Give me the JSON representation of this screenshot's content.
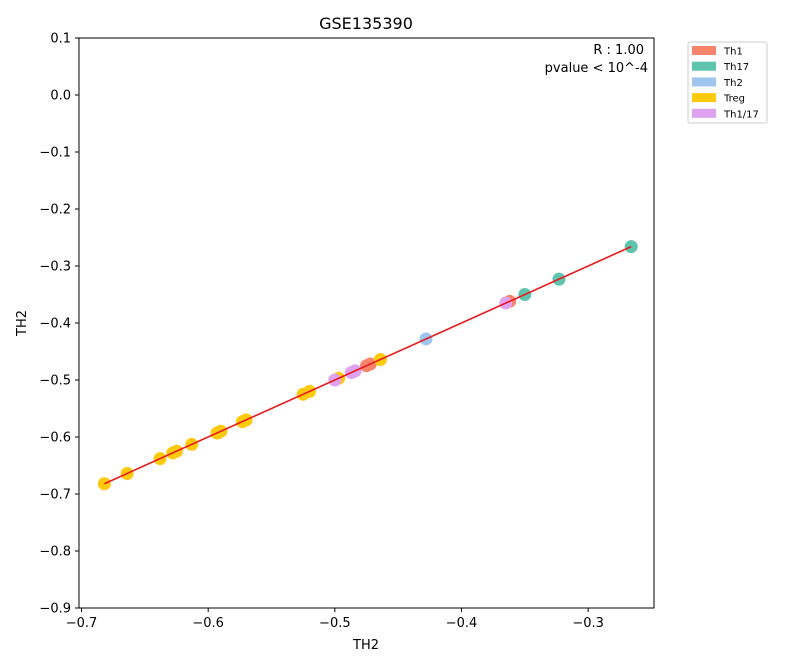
{
  "chart_data": {
    "type": "scatter",
    "title": "GSE135390",
    "xlabel": "TH2",
    "ylabel": "TH2",
    "xlim": [
      -0.702,
      -0.248
    ],
    "ylim": [
      -0.9,
      0.1
    ],
    "xticks": [
      -0.7,
      -0.6,
      -0.5,
      -0.4,
      -0.3
    ],
    "xtick_labels": [
      "−0.7",
      "−0.6",
      "−0.5",
      "−0.4",
      "−0.3"
    ],
    "yticks": [
      0.1,
      0.0,
      -0.1,
      -0.2,
      -0.3,
      -0.4,
      -0.5,
      -0.6,
      -0.7,
      -0.8,
      -0.9
    ],
    "ytick_labels": [
      "0.1",
      "0.0",
      "−0.1",
      "−0.2",
      "−0.3",
      "−0.4",
      "−0.5",
      "−0.6",
      "−0.7",
      "−0.8",
      "−0.9"
    ],
    "annotations": [
      "R : 1.00",
      "pvalue < 10^-4"
    ],
    "legend_position": "outside-top-right",
    "grid": false,
    "series": [
      {
        "name": "Th1",
        "color": "#f4846a",
        "points": [
          [
            -0.475,
            -0.475
          ],
          [
            -0.472,
            -0.472
          ],
          [
            -0.362,
            -0.362
          ]
        ]
      },
      {
        "name": "Th17",
        "color": "#5ec4ad",
        "points": [
          [
            -0.35,
            -0.35
          ],
          [
            -0.323,
            -0.323
          ],
          [
            -0.266,
            -0.266
          ]
        ]
      },
      {
        "name": "Th2",
        "color": "#9ec6ef",
        "points": [
          [
            -0.428,
            -0.428
          ]
        ]
      },
      {
        "name": "Treg",
        "color": "#ffc90e",
        "points": [
          [
            -0.682,
            -0.682
          ],
          [
            -0.664,
            -0.664
          ],
          [
            -0.638,
            -0.638
          ],
          [
            -0.628,
            -0.628
          ],
          [
            -0.625,
            -0.625
          ],
          [
            -0.613,
            -0.613
          ],
          [
            -0.593,
            -0.593
          ],
          [
            -0.59,
            -0.59
          ],
          [
            -0.573,
            -0.573
          ],
          [
            -0.57,
            -0.57
          ],
          [
            -0.525,
            -0.525
          ],
          [
            -0.52,
            -0.52
          ],
          [
            -0.497,
            -0.497
          ],
          [
            -0.464,
            -0.464
          ]
        ]
      },
      {
        "name": "Th1/17",
        "color": "#dfa2f0",
        "points": [
          [
            -0.5,
            -0.5
          ],
          [
            -0.487,
            -0.487
          ],
          [
            -0.484,
            -0.484
          ],
          [
            -0.365,
            -0.365
          ]
        ]
      }
    ],
    "fit_line": {
      "color": "#e8191c",
      "x": [
        -0.682,
        -0.266
      ],
      "y": [
        -0.682,
        -0.266
      ]
    }
  }
}
